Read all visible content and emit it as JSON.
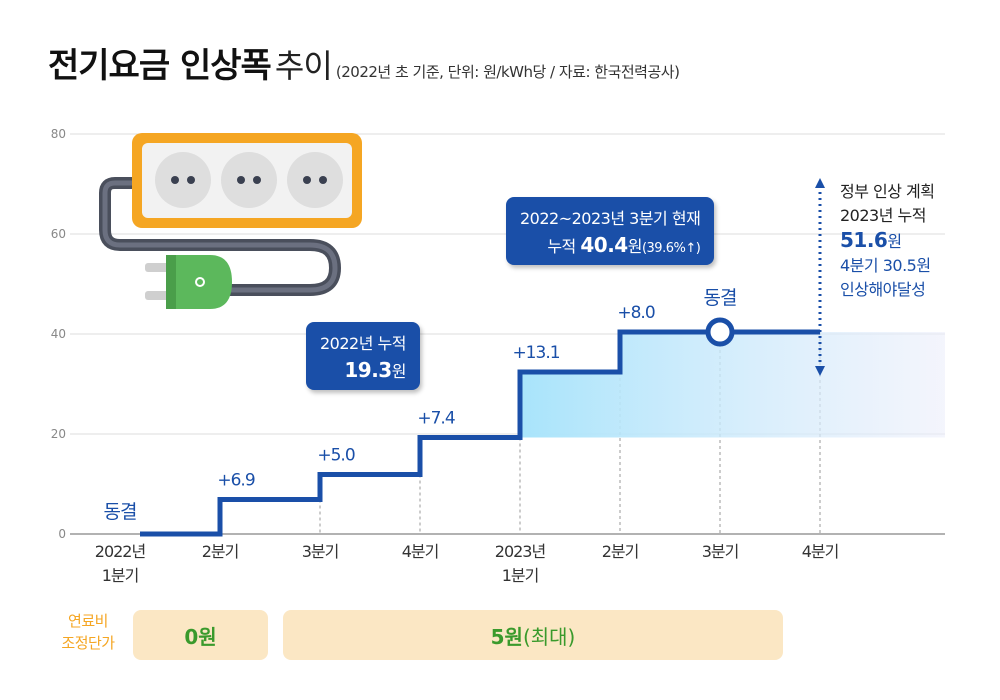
{
  "title": {
    "main": "전기요금 인상폭",
    "light": "추이",
    "sub": "(2022년 초 기준, 단위: 원/kWh당 / 자료: 한국전력공사)"
  },
  "chart_data": {
    "type": "line",
    "step": true,
    "ylim": [
      0,
      80
    ],
    "yticks": [
      0,
      20,
      40,
      60,
      80
    ],
    "grid": true,
    "categories": [
      "2022년\n1분기",
      "2분기",
      "3분기",
      "4분기",
      "2023년\n1분기",
      "2분기",
      "3분기",
      "4분기"
    ],
    "cumulative": [
      0,
      6.9,
      11.9,
      19.3,
      32.4,
      40.4,
      40.4,
      40.4
    ],
    "step_labels": [
      "동결",
      "+6.9",
      "+5.0",
      "+7.4",
      "+13.1",
      "+8.0",
      "동결",
      ""
    ],
    "plan_target": 51.6,
    "colors": {
      "line": "#1a4fa8",
      "green_label": "#3a9a2c",
      "fill_start": "#a8e4fb",
      "fill_end": "#e8ecfb",
      "axis": "#999999",
      "grid": "#dddddd"
    }
  },
  "notes": {
    "box2022": {
      "line1": "2022년 누적",
      "value": "19.3",
      "unit": "원"
    },
    "box2023": {
      "line1": "2022~2023년 3분기 현재",
      "prefix": "누적 ",
      "value": "40.4",
      "unit": "원",
      "pct": "(39.6%↑)"
    },
    "plan": {
      "line1": "정부 인상 계획",
      "line2": "2023년 누적",
      "value": "51.6",
      "unit": "원",
      "line4": "4분기 30.5원",
      "line5": "인상해야달성"
    }
  },
  "fuel": {
    "label_line1": "연료비",
    "label_line2": "조정단가",
    "box1": "0원",
    "box2_bold": "5원",
    "box2_paren": "(최대)"
  }
}
